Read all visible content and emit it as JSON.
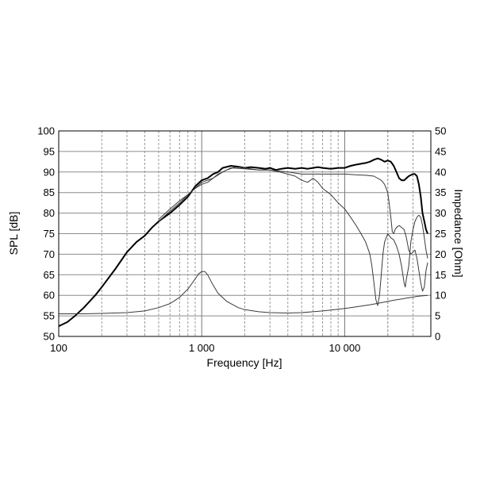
{
  "chart_data": {
    "type": "line",
    "xlabel": "Frequency [Hz]",
    "ylabel_left": "SPL [dB]",
    "ylabel_right": "Impedance [Ohm]",
    "x_scale": "log",
    "xlim": [
      100,
      40000
    ],
    "ylim_left": [
      50,
      100
    ],
    "ylim_right": [
      0,
      50
    ],
    "grid": true,
    "x_ticks": [
      {
        "value": 100,
        "label": "100"
      },
      {
        "value": 1000,
        "label": "1 000"
      },
      {
        "value": 10000,
        "label": "10 000"
      }
    ],
    "y_ticks_left": [
      50,
      55,
      60,
      65,
      70,
      75,
      80,
      85,
      90,
      95,
      100
    ],
    "y_ticks_right": [
      0,
      5,
      10,
      15,
      20,
      25,
      30,
      35,
      40,
      45,
      50
    ],
    "series": [
      {
        "axis": "left",
        "weight": "bold",
        "points": [
          [
            100,
            52.5
          ],
          [
            115,
            53.5
          ],
          [
            130,
            55
          ],
          [
            150,
            57
          ],
          [
            180,
            60
          ],
          [
            200,
            62
          ],
          [
            250,
            66.5
          ],
          [
            300,
            70.5
          ],
          [
            350,
            73
          ],
          [
            400,
            74.5
          ],
          [
            450,
            76.5
          ],
          [
            500,
            78
          ],
          [
            600,
            80
          ],
          [
            700,
            82
          ],
          [
            800,
            84
          ],
          [
            900,
            86.5
          ],
          [
            1000,
            88
          ],
          [
            1100,
            88.5
          ],
          [
            1200,
            89.5
          ],
          [
            1300,
            90
          ],
          [
            1400,
            91
          ],
          [
            1600,
            91.5
          ],
          [
            1800,
            91.3
          ],
          [
            2000,
            91
          ],
          [
            2200,
            91.2
          ],
          [
            2500,
            91
          ],
          [
            2800,
            90.8
          ],
          [
            3000,
            91
          ],
          [
            3300,
            90.5
          ],
          [
            3600,
            90.8
          ],
          [
            4000,
            91
          ],
          [
            4500,
            90.8
          ],
          [
            5000,
            91
          ],
          [
            5500,
            90.8
          ],
          [
            6000,
            91
          ],
          [
            6500,
            91.2
          ],
          [
            7000,
            91
          ],
          [
            8000,
            90.8
          ],
          [
            9000,
            91
          ],
          [
            10000,
            91
          ],
          [
            11000,
            91.5
          ],
          [
            12000,
            91.8
          ],
          [
            13000,
            92
          ],
          [
            14000,
            92.2
          ],
          [
            15000,
            92.5
          ],
          [
            16000,
            93
          ],
          [
            17000,
            93.3
          ],
          [
            18000,
            93
          ],
          [
            19000,
            92.5
          ],
          [
            20000,
            92.8
          ],
          [
            21000,
            92.5
          ],
          [
            22000,
            91.5
          ],
          [
            23000,
            90
          ],
          [
            24000,
            88.5
          ],
          [
            25000,
            88
          ],
          [
            26000,
            88
          ],
          [
            27000,
            88.5
          ],
          [
            28000,
            89
          ],
          [
            30000,
            89.5
          ],
          [
            31000,
            89.5
          ],
          [
            32000,
            89
          ],
          [
            33000,
            87
          ],
          [
            34000,
            84
          ],
          [
            35000,
            80
          ],
          [
            36000,
            78
          ],
          [
            37000,
            76
          ],
          [
            38000,
            75
          ]
        ]
      },
      {
        "axis": "left",
        "weight": "thin",
        "points": [
          [
            500,
            78
          ],
          [
            600,
            80.5
          ],
          [
            700,
            82.5
          ],
          [
            800,
            84.5
          ],
          [
            900,
            86
          ],
          [
            1000,
            87
          ],
          [
            1100,
            87.5
          ],
          [
            1200,
            88.5
          ],
          [
            1300,
            89.5
          ],
          [
            1500,
            90.5
          ],
          [
            1700,
            91.2
          ],
          [
            2000,
            91
          ],
          [
            2500,
            90.5
          ],
          [
            3000,
            90.5
          ],
          [
            4000,
            90
          ],
          [
            5000,
            89.5
          ],
          [
            6000,
            89.5
          ],
          [
            7000,
            89.5
          ],
          [
            8000,
            89.5
          ],
          [
            10000,
            89.5
          ],
          [
            12000,
            89.3
          ],
          [
            14000,
            89.2
          ],
          [
            16000,
            89
          ],
          [
            18000,
            88
          ],
          [
            19000,
            87
          ],
          [
            20000,
            85
          ],
          [
            20500,
            82
          ],
          [
            21000,
            79
          ],
          [
            21500,
            75.5
          ],
          [
            22000,
            75
          ],
          [
            22500,
            76
          ],
          [
            23000,
            76.5
          ],
          [
            24000,
            77
          ],
          [
            26000,
            76
          ],
          [
            27000,
            74
          ],
          [
            28000,
            71
          ],
          [
            29000,
            70
          ],
          [
            30000,
            70.5
          ],
          [
            31000,
            71
          ],
          [
            32000,
            69
          ],
          [
            33000,
            66
          ],
          [
            34000,
            63
          ],
          [
            35000,
            61
          ],
          [
            36000,
            62
          ],
          [
            37000,
            66
          ],
          [
            38000,
            68
          ]
        ]
      },
      {
        "axis": "left",
        "weight": "thin",
        "points": [
          [
            500,
            78.5
          ],
          [
            600,
            81
          ],
          [
            700,
            83
          ],
          [
            800,
            84.5
          ],
          [
            900,
            86
          ],
          [
            1000,
            87.5
          ],
          [
            1200,
            88.5
          ],
          [
            1400,
            90
          ],
          [
            1600,
            91
          ],
          [
            2000,
            90.8
          ],
          [
            2500,
            90.5
          ],
          [
            3000,
            90.5
          ],
          [
            3500,
            90
          ],
          [
            4000,
            89.5
          ],
          [
            4500,
            89
          ],
          [
            5000,
            88
          ],
          [
            5500,
            87.5
          ],
          [
            6000,
            88.5
          ],
          [
            6500,
            87.5
          ],
          [
            7000,
            86
          ],
          [
            8000,
            84.5
          ],
          [
            9000,
            82.5
          ],
          [
            10000,
            81
          ],
          [
            11000,
            79
          ],
          [
            12000,
            77
          ],
          [
            13000,
            75
          ],
          [
            14000,
            73
          ],
          [
            15000,
            70
          ],
          [
            15500,
            67
          ],
          [
            16000,
            63
          ],
          [
            16500,
            59
          ],
          [
            17000,
            57.5
          ],
          [
            17500,
            60
          ],
          [
            18000,
            65
          ],
          [
            18500,
            70
          ],
          [
            19000,
            73
          ],
          [
            20000,
            75
          ],
          [
            21000,
            74
          ],
          [
            22000,
            73.5
          ],
          [
            23000,
            72
          ],
          [
            24000,
            70
          ],
          [
            25000,
            67
          ],
          [
            26000,
            63
          ],
          [
            26500,
            62
          ],
          [
            27000,
            64
          ],
          [
            28000,
            67
          ],
          [
            29000,
            73
          ],
          [
            30000,
            76
          ],
          [
            31000,
            78
          ],
          [
            32000,
            79
          ],
          [
            33000,
            79.5
          ],
          [
            34000,
            79
          ],
          [
            35000,
            77
          ],
          [
            36000,
            74
          ],
          [
            37000,
            71
          ],
          [
            38000,
            69
          ]
        ]
      },
      {
        "axis": "right",
        "weight": "thin",
        "points": [
          [
            100,
            5.5
          ],
          [
            150,
            5.5
          ],
          [
            200,
            5.6
          ],
          [
            300,
            5.8
          ],
          [
            400,
            6.2
          ],
          [
            500,
            7
          ],
          [
            600,
            8
          ],
          [
            700,
            9.5
          ],
          [
            800,
            11.5
          ],
          [
            900,
            14
          ],
          [
            950,
            15.2
          ],
          [
            1000,
            15.8
          ],
          [
            1050,
            15.8
          ],
          [
            1100,
            15
          ],
          [
            1200,
            12.5
          ],
          [
            1300,
            10.5
          ],
          [
            1500,
            8.5
          ],
          [
            1800,
            7
          ],
          [
            2000,
            6.5
          ],
          [
            2500,
            6
          ],
          [
            3000,
            5.8
          ],
          [
            4000,
            5.7
          ],
          [
            5000,
            5.8
          ],
          [
            6000,
            6
          ],
          [
            7000,
            6.2
          ],
          [
            8000,
            6.4
          ],
          [
            10000,
            6.8
          ],
          [
            12000,
            7.2
          ],
          [
            15000,
            7.7
          ],
          [
            18000,
            8.2
          ],
          [
            22000,
            8.8
          ],
          [
            27000,
            9.3
          ],
          [
            33000,
            9.8
          ],
          [
            38000,
            10
          ]
        ]
      }
    ]
  }
}
